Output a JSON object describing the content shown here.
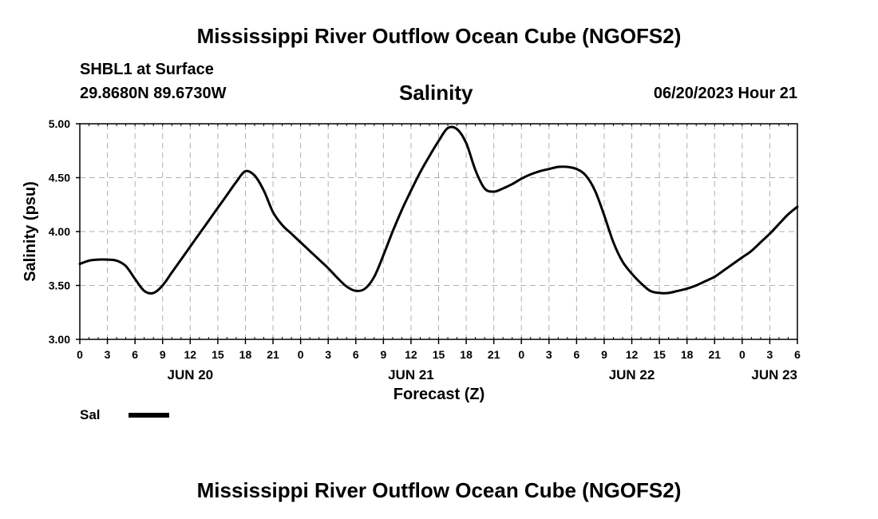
{
  "header": {
    "title": "Mississippi River Outflow Ocean Cube (NGOFS2)",
    "station": "SHBL1 at Surface",
    "coordinates": "29.8680N  89.6730W",
    "timestamp": "06/20/2023 Hour 21"
  },
  "footer": {
    "title": "Mississippi River Outflow Ocean Cube (NGOFS2)"
  },
  "chart_data": {
    "type": "line",
    "title": "Salinity",
    "xlabel": "Forecast (Z)",
    "ylabel": "Salinity (psu)",
    "ylim": [
      3.0,
      5.0
    ],
    "xlim": [
      0,
      78
    ],
    "x_unit": "hours from 06/20/2023 00Z",
    "yticks": [
      3.0,
      3.5,
      4.0,
      4.5,
      5.0
    ],
    "ytick_labels": [
      "3.00",
      "3.50",
      "4.00",
      "4.50",
      "5.00"
    ],
    "xticks": [
      0,
      3,
      6,
      9,
      12,
      15,
      18,
      21,
      24,
      27,
      30,
      33,
      36,
      39,
      42,
      45,
      48,
      51,
      54,
      57,
      60,
      63,
      66,
      69,
      72,
      75,
      78
    ],
    "xtick_labels": [
      "0",
      "3",
      "6",
      "9",
      "12",
      "15",
      "18",
      "21",
      "0",
      "3",
      "6",
      "9",
      "12",
      "15",
      "18",
      "21",
      "0",
      "3",
      "6",
      "9",
      "12",
      "15",
      "18",
      "21",
      "0",
      "3",
      "6"
    ],
    "day_labels": [
      {
        "x": 12,
        "label": "JUN 20"
      },
      {
        "x": 36,
        "label": "JUN 21"
      },
      {
        "x": 60,
        "label": "JUN 22"
      },
      {
        "x": 75.5,
        "label": "JUN 23"
      }
    ],
    "grid": true,
    "legend": {
      "position": "bottom-left",
      "entries": [
        {
          "label": "Sal",
          "color": "#000000"
        }
      ]
    },
    "series": [
      {
        "name": "Sal",
        "color": "#000000",
        "x": [
          0,
          1,
          2,
          3,
          4,
          5,
          6,
          7,
          8,
          9,
          10,
          11,
          12,
          13,
          14,
          15,
          16,
          17,
          18,
          19,
          20,
          21,
          22,
          23,
          24,
          25,
          26,
          27,
          28,
          29,
          30,
          31,
          32,
          33,
          34,
          35,
          36,
          37,
          38,
          39,
          40,
          41,
          42,
          43,
          44,
          45,
          46,
          47,
          48,
          49,
          50,
          51,
          52,
          53,
          54,
          55,
          56,
          57,
          58,
          59,
          60,
          61,
          62,
          63,
          64,
          65,
          66,
          67,
          68,
          69,
          70,
          71,
          72,
          73,
          74,
          75,
          76,
          77,
          78
        ],
        "values": [
          3.7,
          3.73,
          3.74,
          3.74,
          3.73,
          3.68,
          3.56,
          3.45,
          3.43,
          3.5,
          3.62,
          3.74,
          3.86,
          3.98,
          4.1,
          4.22,
          4.34,
          4.46,
          4.56,
          4.52,
          4.38,
          4.18,
          4.06,
          3.98,
          3.9,
          3.82,
          3.74,
          3.66,
          3.57,
          3.49,
          3.45,
          3.47,
          3.58,
          3.78,
          4.0,
          4.2,
          4.38,
          4.55,
          4.7,
          4.84,
          4.96,
          4.95,
          4.82,
          4.57,
          4.4,
          4.37,
          4.4,
          4.44,
          4.49,
          4.53,
          4.56,
          4.58,
          4.6,
          4.6,
          4.58,
          4.52,
          4.38,
          4.15,
          3.9,
          3.72,
          3.61,
          3.52,
          3.45,
          3.43,
          3.43,
          3.45,
          3.47,
          3.5,
          3.54,
          3.58,
          3.64,
          3.7,
          3.76,
          3.82,
          3.9,
          3.98,
          4.07,
          4.16,
          4.23
        ]
      }
    ]
  }
}
